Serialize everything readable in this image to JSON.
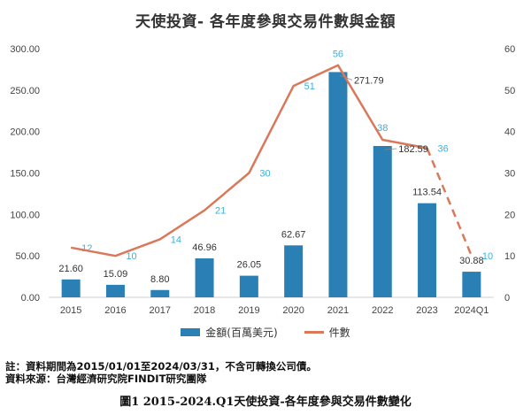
{
  "chart_data": {
    "type": "bar",
    "title": "天使投資- 各年度參與交易件數與金額",
    "categories": [
      "2015",
      "2016",
      "2017",
      "2018",
      "2019",
      "2020",
      "2021",
      "2022",
      "2023",
      "2024Q1"
    ],
    "series": [
      {
        "name": "金額(百萬美元)",
        "type": "bar",
        "axis": "left",
        "values": [
          21.6,
          15.09,
          8.8,
          46.96,
          26.05,
          62.67,
          271.79,
          182.59,
          113.54,
          30.88
        ],
        "labels": [
          "21.60",
          "15.09",
          "8.80",
          "46.96",
          "26.05",
          "62.67",
          "271.79",
          "182.59",
          "113.54",
          "30.88"
        ],
        "color": "#2a7fb5"
      },
      {
        "name": "件數",
        "type": "line",
        "axis": "right",
        "values": [
          12,
          10,
          14,
          21,
          30,
          51,
          56,
          38,
          36,
          10
        ],
        "labels": [
          "12",
          "10",
          "14",
          "21",
          "30",
          "51",
          "56",
          "38",
          "36",
          "10"
        ],
        "color": "#d9795a",
        "label_color": "#3ab0e0",
        "dashed_from_index": 8
      }
    ],
    "y_left": {
      "lim": [
        0,
        300
      ],
      "ticks": [
        "0.00",
        "50.00",
        "100.00",
        "150.00",
        "200.00",
        "250.00",
        "300.00"
      ]
    },
    "y_right": {
      "lim": [
        0,
        60
      ],
      "ticks": [
        "0",
        "10",
        "20",
        "30",
        "40",
        "50",
        "60"
      ]
    },
    "grid": false,
    "legend_position": "bottom"
  },
  "legend": {
    "bar_label": "金額(百萬美元)",
    "line_label": "件數"
  },
  "notes": {
    "note1": "註：資料期間為2015/01/01至2024/03/31，不含可轉換公司債。",
    "note2": "資料來源：台灣經濟研究院FINDIT研究團隊"
  },
  "caption": "圖1  2015-2024.Q1天使投資-各年度參與交易件數變化"
}
